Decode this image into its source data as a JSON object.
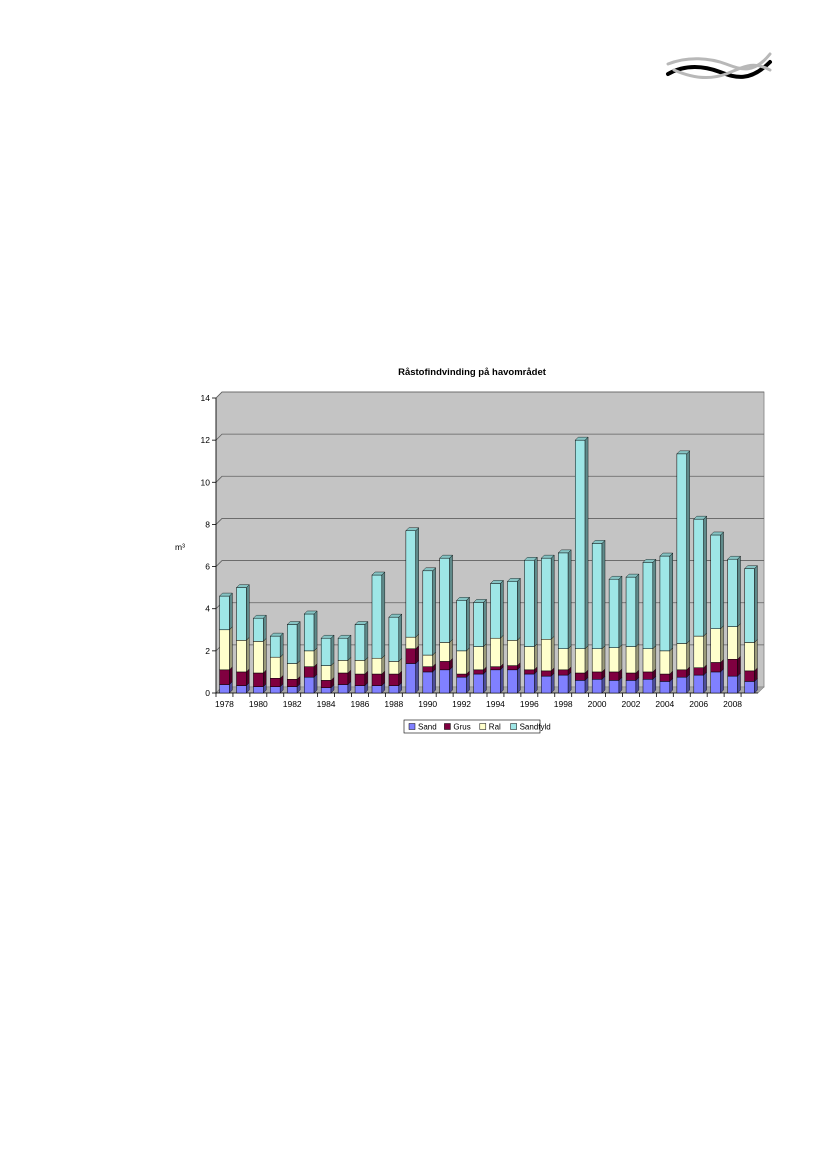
{
  "logo": {
    "name": "wave-logo-icon"
  },
  "colors": {
    "plot_bg": "#c4c4c4",
    "sand": "#8080ff",
    "grus": "#800040",
    "ral": "#ffffcc",
    "sandfyld": "#9ee6e6"
  },
  "chart_data": {
    "type": "bar",
    "stacked": true,
    "title": "Råstofindvinding på havområdet",
    "xlabel": "",
    "ylabel": "m³",
    "ylim": [
      0,
      14
    ],
    "yticks": [
      0,
      2,
      4,
      6,
      8,
      10,
      12,
      14
    ],
    "grid": true,
    "legend_position": "bottom",
    "categories": [
      "1978",
      "1979",
      "1980",
      "1981",
      "1982",
      "1983",
      "1984",
      "1985",
      "1986",
      "1987",
      "1988",
      "1989",
      "1990",
      "1991",
      "1992",
      "1993",
      "1994",
      "1995",
      "1996",
      "1997",
      "1998",
      "1999",
      "2000",
      "2001",
      "2002",
      "2003",
      "2004",
      "2005",
      "2006",
      "2007",
      "2008",
      "2009"
    ],
    "tick_labels": [
      "1978",
      "",
      "1980",
      "",
      "1982",
      "",
      "1984",
      "",
      "1986",
      "",
      "1988",
      "",
      "1990",
      "",
      "1992",
      "",
      "1994",
      "",
      "1996",
      "",
      "1998",
      "",
      "2000",
      "",
      "2002",
      "",
      "2004",
      "",
      "2006",
      "",
      "2008",
      ""
    ],
    "series": [
      {
        "name": "Sand",
        "color": "#8080ff",
        "values": [
          0.4,
          0.35,
          0.3,
          0.3,
          0.3,
          0.75,
          0.25,
          0.4,
          0.35,
          0.35,
          0.35,
          1.4,
          1.0,
          1.1,
          0.75,
          0.9,
          1.1,
          1.1,
          0.9,
          0.8,
          0.85,
          0.6,
          0.65,
          0.6,
          0.6,
          0.65,
          0.55,
          0.75,
          0.85,
          1.0,
          0.8,
          0.55
        ]
      },
      {
        "name": "Grus",
        "color": "#800040",
        "values": [
          0.7,
          0.65,
          0.65,
          0.4,
          0.35,
          0.5,
          0.35,
          0.55,
          0.55,
          0.55,
          0.55,
          0.7,
          0.25,
          0.4,
          0.15,
          0.2,
          0.15,
          0.2,
          0.2,
          0.25,
          0.25,
          0.35,
          0.35,
          0.4,
          0.35,
          0.35,
          0.35,
          0.35,
          0.35,
          0.45,
          0.8,
          0.5
        ]
      },
      {
        "name": "Ral",
        "color": "#ffffcc",
        "values": [
          1.9,
          1.5,
          1.5,
          1.0,
          0.75,
          0.75,
          0.7,
          0.6,
          0.65,
          0.75,
          0.6,
          0.55,
          0.55,
          0.9,
          1.1,
          1.1,
          1.35,
          1.2,
          1.1,
          1.5,
          1.0,
          1.15,
          1.1,
          1.15,
          1.25,
          1.1,
          1.1,
          1.25,
          1.5,
          1.6,
          1.55,
          1.35
        ]
      },
      {
        "name": "Sandfyld",
        "color": "#9ee6e6",
        "values": [
          1.6,
          2.5,
          1.1,
          1.0,
          1.85,
          1.75,
          1.3,
          1.05,
          1.7,
          3.95,
          2.1,
          5.05,
          4.0,
          4.0,
          2.4,
          2.1,
          2.6,
          2.8,
          4.1,
          3.85,
          4.55,
          9.9,
          5.0,
          3.25,
          3.3,
          4.1,
          4.5,
          9.0,
          5.55,
          4.45,
          3.2,
          3.5
        ]
      }
    ]
  }
}
